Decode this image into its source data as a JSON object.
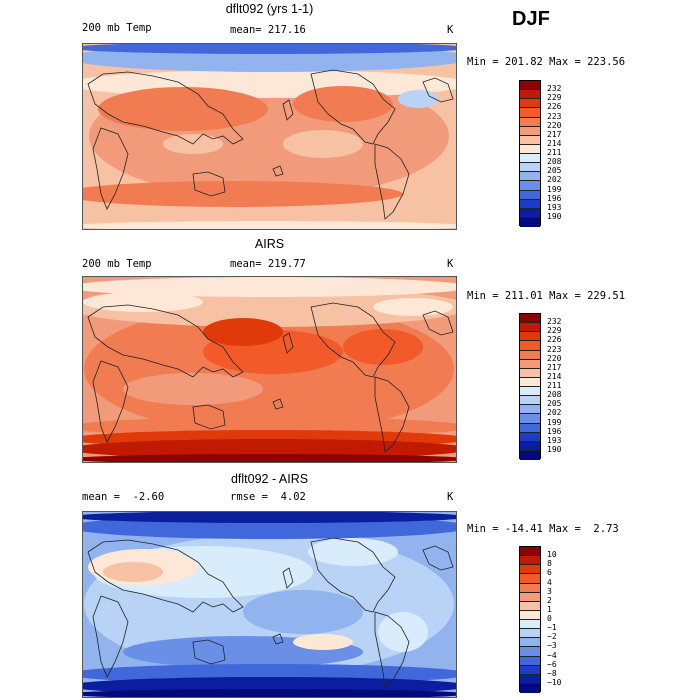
{
  "season": "DJF",
  "coast_color": "#222222",
  "panels": [
    {
      "title": "dflt092 (yrs 1-1)",
      "left": "200 mb Temp",
      "center": "mean= 217.16",
      "unit": "K",
      "stats": "Min = 201.82 Max = 223.56",
      "colorbar": {
        "labels": [
          "232",
          "229",
          "226",
          "223",
          "220",
          "217",
          "214",
          "211",
          "208",
          "205",
          "202",
          "199",
          "196",
          "193",
          "190"
        ],
        "colors": [
          "#8c0000",
          "#c01a00",
          "#e03a0a",
          "#f25a2a",
          "#f27c52",
          "#f29b7a",
          "#f7c1a4",
          "#fde7d6",
          "#d9ecfb",
          "#b8d3f5",
          "#91b3ee",
          "#6a8fe6",
          "#4068da",
          "#1c3ec6",
          "#0a1e9e",
          "#000a78"
        ]
      },
      "scene": "model"
    },
    {
      "title": "AIRS",
      "left": "200 mb Temp",
      "center": "mean= 219.77",
      "unit": "K",
      "stats": "Min = 211.01 Max = 229.51",
      "colorbar": {
        "labels": [
          "232",
          "229",
          "226",
          "223",
          "220",
          "217",
          "214",
          "211",
          "208",
          "205",
          "202",
          "199",
          "196",
          "193",
          "190"
        ],
        "colors": [
          "#8c0000",
          "#c01a00",
          "#e03a0a",
          "#f25a2a",
          "#f27c52",
          "#f29b7a",
          "#f7c1a4",
          "#fde7d6",
          "#d9ecfb",
          "#b8d3f5",
          "#91b3ee",
          "#6a8fe6",
          "#4068da",
          "#1c3ec6",
          "#0a1e9e",
          "#000a78"
        ]
      },
      "scene": "obs"
    },
    {
      "title": "dflt092 - AIRS",
      "left": "mean =  -2.60",
      "center": "rmse =  4.02",
      "unit": "K",
      "stats": "Min = -14.41 Max =  2.73",
      "colorbar": {
        "labels": [
          "10",
          "8",
          "6",
          "4",
          "3",
          "2",
          "1",
          "0",
          "−1",
          "−2",
          "−3",
          "−4",
          "−6",
          "−8",
          "−10"
        ],
        "colors": [
          "#8c0000",
          "#c01a00",
          "#e03a0a",
          "#f25a2a",
          "#f27c52",
          "#f29b7a",
          "#f7c1a4",
          "#fde7d6",
          "#d9ecfb",
          "#b8d3f5",
          "#91b3ee",
          "#6a8fe6",
          "#4068da",
          "#1c3ec6",
          "#0a1e9e",
          "#000a78"
        ]
      },
      "scene": "diff"
    }
  ]
}
